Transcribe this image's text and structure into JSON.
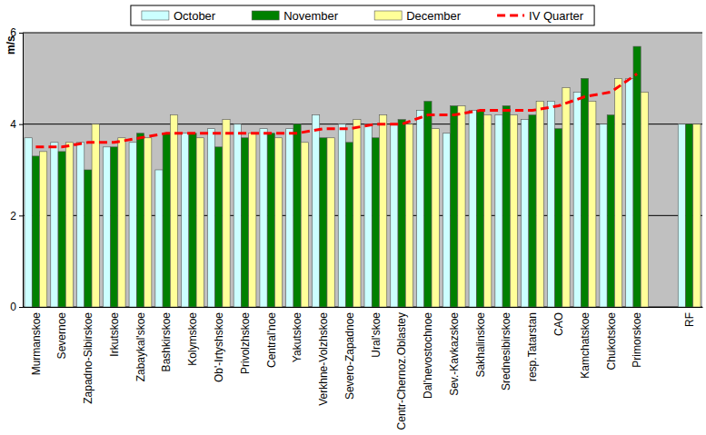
{
  "chart_data": {
    "type": "bar",
    "y_label": "m/s",
    "categories": [
      "Murmanskoe",
      "Severnoe",
      "Zapadno-Sibirskoe",
      "Irkutskoe",
      "Zabaykal'skoe",
      "Bashkirskoe",
      "Kolymskoe",
      "Ob'-Irtyshskoe",
      "Privolzhskoe",
      "Central'noe",
      "Yakutskoe",
      "Verkhne-Volzhskoe",
      "Severo-Zapadnoe",
      "Ural'skoe",
      "Centr-Chernoz.Oblastey",
      "Dal'nevostochnoe",
      "Sev.-Kavkazskoe",
      "Sakhalinskoe",
      "Srednesibirskoe",
      "resp.Tatarstan",
      "CAO",
      "Kamchatskoe",
      "Chukotskoe",
      "Primorskoe",
      null,
      "RF"
    ],
    "series": [
      {
        "name": "October",
        "type": "bar",
        "color": "#ccffff",
        "values": [
          3.7,
          3.6,
          3.6,
          3.5,
          3.6,
          3.0,
          3.8,
          3.9,
          4.0,
          3.9,
          3.9,
          4.2,
          4.0,
          4.0,
          4.0,
          4.3,
          3.8,
          4.3,
          4.2,
          4.1,
          4.5,
          4.7,
          4.0,
          5.0,
          null,
          4.0
        ]
      },
      {
        "name": "November",
        "type": "bar",
        "color": "#008000",
        "values": [
          3.3,
          3.4,
          3.0,
          3.5,
          3.8,
          3.8,
          3.8,
          3.5,
          3.7,
          3.8,
          4.0,
          3.7,
          3.6,
          3.7,
          4.1,
          4.5,
          4.4,
          4.3,
          4.4,
          4.2,
          3.9,
          5.0,
          4.2,
          5.7,
          null,
          4.0
        ]
      },
      {
        "name": "December",
        "type": "bar",
        "color": "#ffff99",
        "values": [
          3.4,
          3.6,
          4.0,
          3.7,
          3.7,
          4.2,
          3.7,
          4.1,
          3.8,
          3.7,
          3.6,
          3.7,
          4.1,
          4.2,
          4.0,
          3.9,
          4.4,
          4.2,
          4.2,
          4.5,
          4.8,
          4.5,
          5.0,
          4.7,
          null,
          4.0
        ]
      },
      {
        "name": "IV Quarter",
        "type": "line",
        "color": "#ff0000",
        "line_style": "dashed",
        "values": [
          3.5,
          3.5,
          3.6,
          3.6,
          3.7,
          3.8,
          3.8,
          3.8,
          3.8,
          3.8,
          3.8,
          3.9,
          3.9,
          4.0,
          4.0,
          4.2,
          4.2,
          4.3,
          4.3,
          4.3,
          4.4,
          4.6,
          4.7,
          5.1,
          null,
          null
        ]
      }
    ],
    "ylim": [
      0,
      6
    ],
    "yticks": [
      0,
      2,
      4,
      6
    ],
    "grid": true,
    "legend": "top"
  }
}
